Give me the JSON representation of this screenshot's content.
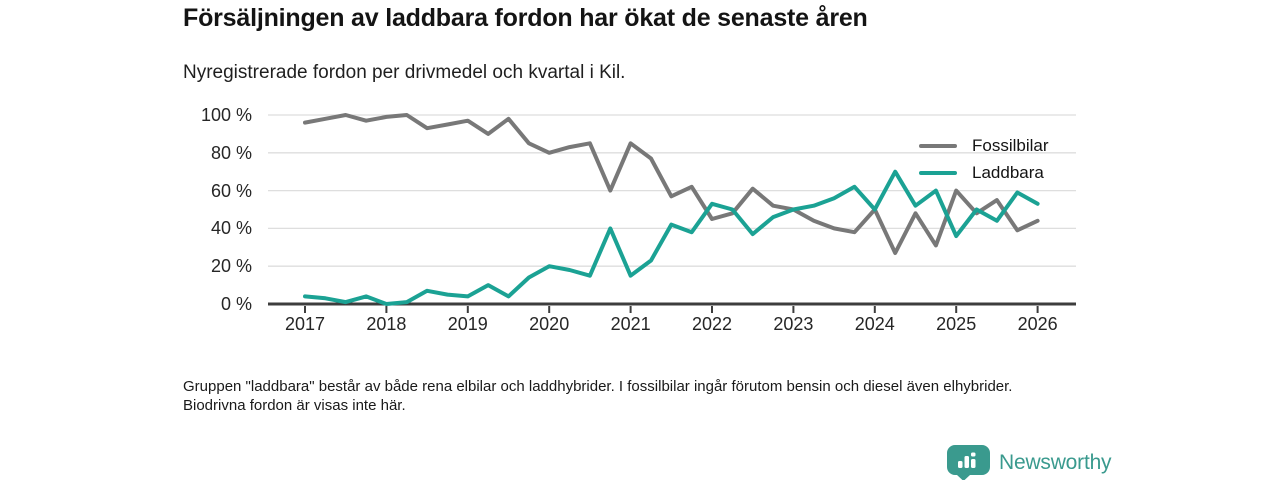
{
  "title": "Försäljningen av laddbara fordon har ökat de senaste åren",
  "subtitle": "Nyregistrerade fordon per drivmedel och kvartal i Kil.",
  "footnote": "Gruppen \"laddbara\" består av både rena elbilar och laddhybrider. I fossilbilar ingår förutom bensin och diesel även elhybrider. Biodrivna fordon är visas inte här.",
  "logo": {
    "text": "Newsworthy",
    "color": "#3a9a8e"
  },
  "chart_data": {
    "type": "line",
    "x_unit": "quarter",
    "x_range": [
      "2017 Q1",
      "2026 Q1"
    ],
    "x_tick_labels": [
      "2017",
      "2018",
      "2019",
      "2020",
      "2021",
      "2022",
      "2023",
      "2024",
      "2025",
      "2026"
    ],
    "y_ticks": [
      {
        "value": 0,
        "label": "0 %"
      },
      {
        "value": 20,
        "label": "20 %"
      },
      {
        "value": 40,
        "label": "40 %"
      },
      {
        "value": 60,
        "label": "60 %"
      },
      {
        "value": 80,
        "label": "80 %"
      },
      {
        "value": 100,
        "label": "100 %"
      }
    ],
    "ylim": [
      0,
      100
    ],
    "grid": true,
    "legend_position": "top-right",
    "series": [
      {
        "name": "Fossilbilar",
        "color": "#787878",
        "values": [
          96,
          98,
          100,
          97,
          99,
          100,
          93,
          95,
          97,
          90,
          98,
          85,
          80,
          83,
          85,
          60,
          85,
          77,
          57,
          62,
          45,
          48,
          61,
          52,
          50,
          44,
          40,
          38,
          50,
          27,
          48,
          31,
          60,
          48,
          55,
          39,
          44
        ]
      },
      {
        "name": "Laddbara",
        "color": "#1ba294",
        "values": [
          4,
          3,
          1,
          4,
          0,
          1,
          7,
          5,
          4,
          10,
          4,
          14,
          20,
          18,
          15,
          40,
          15,
          23,
          42,
          38,
          53,
          50,
          37,
          46,
          50,
          52,
          56,
          62,
          50,
          70,
          52,
          60,
          36,
          50,
          44,
          59,
          53
        ]
      }
    ]
  }
}
